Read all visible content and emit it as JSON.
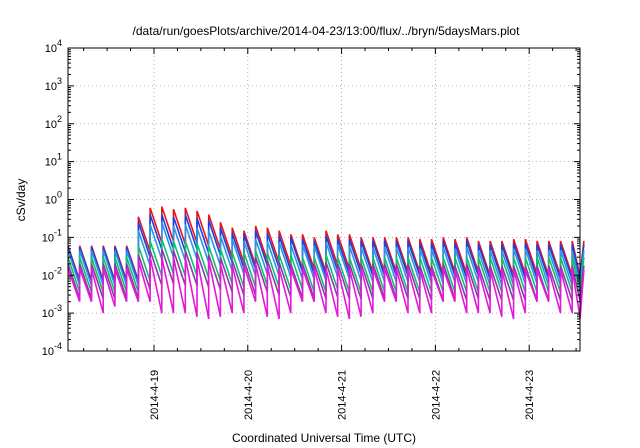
{
  "chart_data": {
    "type": "line",
    "title": "/data/run/goesPlots/archive/2014-04-23/13:00/flux/../bryn/5daysMars.plot",
    "xlabel": "Coordinated Universal Time (UTC)",
    "ylabel": "cSv/day",
    "yscale": "log",
    "ylim_exponents": [
      -4,
      4
    ],
    "y_ticks": [
      {
        "base": "10",
        "exp": "-4"
      },
      {
        "base": "10",
        "exp": "-3"
      },
      {
        "base": "10",
        "exp": "-2"
      },
      {
        "base": "10",
        "exp": "-1"
      },
      {
        "base": "10",
        "exp": "0"
      },
      {
        "base": "10",
        "exp": "1"
      },
      {
        "base": "10",
        "exp": "2"
      },
      {
        "base": "10",
        "exp": "3"
      },
      {
        "base": "10",
        "exp": "4"
      }
    ],
    "xlim": [
      "2014-04-18T02:00",
      "2014-04-23T13:00"
    ],
    "x_ticks": [
      "2014-4-19",
      "2014-4-20",
      "2014-4-21",
      "2014-4-22",
      "2014-4-23"
    ],
    "grid": true,
    "legend": "none",
    "sawtooth_period_hours": 3,
    "series": [
      {
        "color": "#e8141b",
        "peak_values": [
          0.06,
          0.06,
          0.06,
          0.06,
          0.06,
          0.06,
          0.35,
          0.6,
          0.65,
          0.55,
          0.6,
          0.5,
          0.4,
          0.25,
          0.18,
          0.15,
          0.2,
          0.18,
          0.15,
          0.12,
          0.12,
          0.1,
          0.15,
          0.12,
          0.12,
          0.1,
          0.1,
          0.1,
          0.1,
          0.1,
          0.09,
          0.09,
          0.1,
          0.09,
          0.1,
          0.08,
          0.08,
          0.08,
          0.09,
          0.09,
          0.08,
          0.08,
          0.08,
          0.08,
          0.08
        ]
      },
      {
        "color": "#1f3fe0",
        "peak_values": [
          0.055,
          0.055,
          0.055,
          0.055,
          0.055,
          0.055,
          0.25,
          0.4,
          0.4,
          0.35,
          0.4,
          0.32,
          0.28,
          0.18,
          0.13,
          0.12,
          0.15,
          0.13,
          0.11,
          0.1,
          0.09,
          0.08,
          0.11,
          0.09,
          0.09,
          0.08,
          0.08,
          0.08,
          0.08,
          0.08,
          0.07,
          0.07,
          0.08,
          0.07,
          0.08,
          0.065,
          0.065,
          0.065,
          0.07,
          0.07,
          0.065,
          0.065,
          0.065,
          0.065,
          0.065
        ]
      },
      {
        "color": "#2a96e0",
        "peak_values": [
          0.045,
          0.045,
          0.045,
          0.045,
          0.045,
          0.045,
          0.15,
          0.22,
          0.25,
          0.2,
          0.22,
          0.18,
          0.15,
          0.11,
          0.09,
          0.08,
          0.09,
          0.08,
          0.075,
          0.065,
          0.065,
          0.06,
          0.075,
          0.065,
          0.06,
          0.055,
          0.055,
          0.055,
          0.055,
          0.055,
          0.05,
          0.05,
          0.055,
          0.05,
          0.055,
          0.045,
          0.045,
          0.045,
          0.05,
          0.05,
          0.045,
          0.045,
          0.045,
          0.045,
          0.045
        ]
      },
      {
        "color": "#10c070",
        "peak_values": [
          0.03,
          0.03,
          0.03,
          0.03,
          0.03,
          0.03,
          0.06,
          0.08,
          0.09,
          0.08,
          0.08,
          0.07,
          0.06,
          0.05,
          0.04,
          0.04,
          0.045,
          0.04,
          0.035,
          0.035,
          0.03,
          0.03,
          0.035,
          0.03,
          0.03,
          0.03,
          0.03,
          0.03,
          0.03,
          0.03,
          0.03,
          0.03,
          0.03,
          0.03,
          0.03,
          0.03,
          0.03,
          0.03,
          0.03,
          0.03,
          0.03,
          0.03,
          0.03,
          0.03,
          0.03
        ]
      },
      {
        "color": "#8a3aa8",
        "peak_values": [
          0.02,
          0.02,
          0.02,
          0.02,
          0.02,
          0.02,
          0.035,
          0.045,
          0.05,
          0.045,
          0.045,
          0.04,
          0.035,
          0.03,
          0.025,
          0.025,
          0.03,
          0.025,
          0.022,
          0.02,
          0.02,
          0.02,
          0.022,
          0.02,
          0.02,
          0.02,
          0.02,
          0.02,
          0.02,
          0.02,
          0.018,
          0.018,
          0.02,
          0.018,
          0.02,
          0.018,
          0.018,
          0.018,
          0.018,
          0.018,
          0.018,
          0.018,
          0.018,
          0.018,
          0.018
        ]
      },
      {
        "color": "#e21ad8",
        "peak_values": [
          0.015,
          0.015,
          0.015,
          0.015,
          0.015,
          0.015,
          0.025,
          0.03,
          0.03,
          0.03,
          0.03,
          0.028,
          0.025,
          0.02,
          0.018,
          0.018,
          0.02,
          0.018,
          0.015,
          0.015,
          0.015,
          0.015,
          0.015,
          0.015,
          0.015,
          0.015,
          0.015,
          0.015,
          0.015,
          0.015,
          0.014,
          0.014,
          0.015,
          0.014,
          0.015,
          0.014,
          0.014,
          0.014,
          0.014,
          0.014,
          0.014,
          0.014,
          0.014,
          0.014,
          0.014
        ],
        "trough_values": [
          0.002,
          0.002,
          0.001,
          0.0015,
          0.002,
          0.002,
          0.002,
          0.001,
          0.001,
          0.001,
          0.0008,
          0.0007,
          0.0008,
          0.001,
          0.001,
          0.002,
          0.0008,
          0.0007,
          0.001,
          0.002,
          0.002,
          0.001,
          0.0008,
          0.0007,
          0.0008,
          0.001,
          0.002,
          0.002,
          0.001,
          0.001,
          0.001,
          0.002,
          0.002,
          0.001,
          0.001,
          0.001,
          0.0008,
          0.0007,
          0.001,
          0.002,
          0.002,
          0.001,
          0.001,
          0.0008,
          0.0007
        ]
      }
    ],
    "trough_ratio": 0.12
  }
}
